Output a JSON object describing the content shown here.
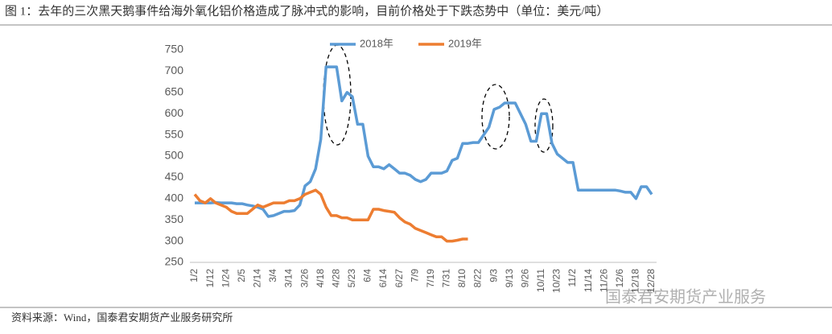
{
  "chart_data": {
    "type": "line",
    "title": "图 1：去年的三次黑天鹅事件给海外氧化铝价格造成了脉冲式的影响，目前价格处于下跌态势中（单位：美元/吨）",
    "source": "资料来源：Wind，国泰君安期货产业服务研究所",
    "watermark": "国泰君安期货产业服务",
    "categories": [
      "1/2",
      null,
      null,
      "1/12",
      null,
      null,
      "1/24",
      null,
      null,
      "2/5",
      null,
      null,
      "2/14",
      null,
      null,
      "3/4",
      null,
      null,
      "3/14",
      null,
      null,
      "3/26",
      null,
      null,
      "4/18",
      null,
      null,
      "4/28",
      null,
      null,
      "5/23",
      null,
      null,
      "6/4",
      null,
      null,
      "6/14",
      null,
      null,
      "6/27",
      null,
      null,
      "7/9",
      null,
      null,
      "7/19",
      null,
      null,
      "7/31",
      null,
      null,
      "8/10",
      null,
      null,
      "8/22",
      null,
      null,
      "9/3",
      null,
      null,
      "9/13",
      null,
      null,
      "9/26",
      null,
      null,
      "10/11",
      null,
      null,
      "10/23",
      null,
      null,
      "11/2",
      null,
      null,
      "11/14",
      null,
      null,
      "11/26",
      null,
      null,
      "12/6",
      null,
      null,
      "12/18",
      null,
      null,
      "12/28"
    ],
    "series": [
      {
        "name": "2018年",
        "color": "#5b9bd5",
        "values": [
          390,
          390,
          390,
          390,
          391,
          390,
          390,
          390,
          388,
          388,
          385,
          383,
          380,
          375,
          358,
          360,
          365,
          370,
          370,
          372,
          385,
          430,
          440,
          470,
          540,
          710,
          710,
          710,
          630,
          650,
          640,
          575,
          575,
          500,
          475,
          475,
          470,
          480,
          470,
          460,
          460,
          455,
          445,
          440,
          445,
          460,
          460,
          460,
          465,
          490,
          495,
          530,
          530,
          532,
          532,
          550,
          568,
          610,
          615,
          625,
          625,
          625,
          600,
          575,
          535,
          535,
          600,
          600,
          530,
          505,
          495,
          485,
          485,
          420,
          420,
          420,
          420,
          420,
          420,
          420,
          420,
          418,
          415,
          415,
          400,
          428,
          428,
          410
        ]
      },
      {
        "name": "2019年",
        "color": "#ed7d31",
        "values": [
          410,
          395,
          390,
          400,
          390,
          385,
          380,
          370,
          365,
          365,
          365,
          375,
          385,
          380,
          385,
          390,
          390,
          390,
          395,
          395,
          400,
          410,
          415,
          420,
          410,
          380,
          360,
          360,
          355,
          355,
          350,
          350,
          350,
          350,
          375,
          375,
          372,
          370,
          368,
          355,
          345,
          340,
          330,
          325,
          320,
          315,
          310,
          310,
          300,
          300,
          302,
          305,
          305,
          null,
          null,
          null,
          null,
          null,
          null,
          null,
          null,
          null,
          null,
          null,
          null,
          null,
          null,
          null,
          null,
          null,
          null,
          null,
          null,
          null,
          null,
          null,
          null,
          null,
          null,
          null,
          null,
          null,
          null,
          null,
          null,
          null,
          null,
          null
        ]
      }
    ],
    "ylim": [
      250,
      750
    ],
    "yticks": [
      250,
      300,
      350,
      400,
      450,
      500,
      550,
      600,
      650,
      700,
      750
    ],
    "legend": "top"
  }
}
